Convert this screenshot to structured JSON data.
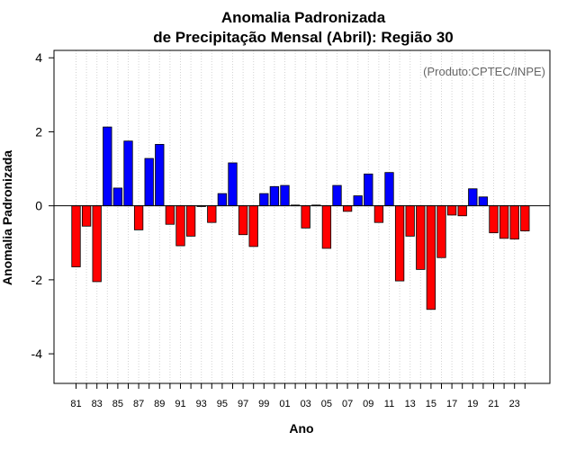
{
  "chart_data": {
    "type": "bar",
    "title_line1": "Anomalia Padronizada",
    "title_line2": "de Precipitação Mensal (Abril): Região 30",
    "xlabel": "Ano",
    "ylabel": "Anomalia Padronizada",
    "credit": "(Produto:CPTEC/INPE)",
    "ylim": [
      -4.8,
      4.2
    ],
    "yticks": [
      -4,
      -2,
      0,
      2,
      4
    ],
    "xtick_labels": [
      "81",
      "83",
      "85",
      "87",
      "89",
      "91",
      "93",
      "95",
      "97",
      "99",
      "01",
      "03",
      "05",
      "07",
      "09",
      "11",
      "13",
      "15",
      "17",
      "19",
      "21",
      "23"
    ],
    "categories": [
      "1981",
      "1982",
      "1983",
      "1984",
      "1985",
      "1986",
      "1987",
      "1988",
      "1989",
      "1990",
      "1991",
      "1992",
      "1993",
      "1994",
      "1995",
      "1996",
      "1997",
      "1998",
      "1999",
      "2000",
      "2001",
      "2002",
      "2003",
      "2004",
      "2005",
      "2006",
      "2007",
      "2008",
      "2009",
      "2010",
      "2011",
      "2012",
      "2013",
      "2014",
      "2015",
      "2016",
      "2017",
      "2018",
      "2019",
      "2020",
      "2021",
      "2022",
      "2023",
      "2024"
    ],
    "values": [
      -1.65,
      -0.55,
      -2.05,
      2.13,
      0.48,
      1.75,
      -0.65,
      1.28,
      1.66,
      -0.5,
      -1.08,
      -0.82,
      -0.02,
      -0.45,
      0.33,
      1.16,
      -0.78,
      -1.1,
      0.33,
      0.52,
      0.55,
      0.02,
      -0.6,
      0.02,
      -1.15,
      0.55,
      -0.15,
      0.27,
      0.86,
      -0.45,
      0.9,
      -2.03,
      -0.82,
      -1.72,
      -2.8,
      -1.4,
      -0.25,
      -0.27,
      0.46,
      0.24,
      -0.73,
      -0.88,
      -0.9,
      -0.68
    ],
    "positive_color": "#0000ff",
    "negative_color": "#ff0000",
    "grid": true,
    "credit_color": "#666666"
  }
}
